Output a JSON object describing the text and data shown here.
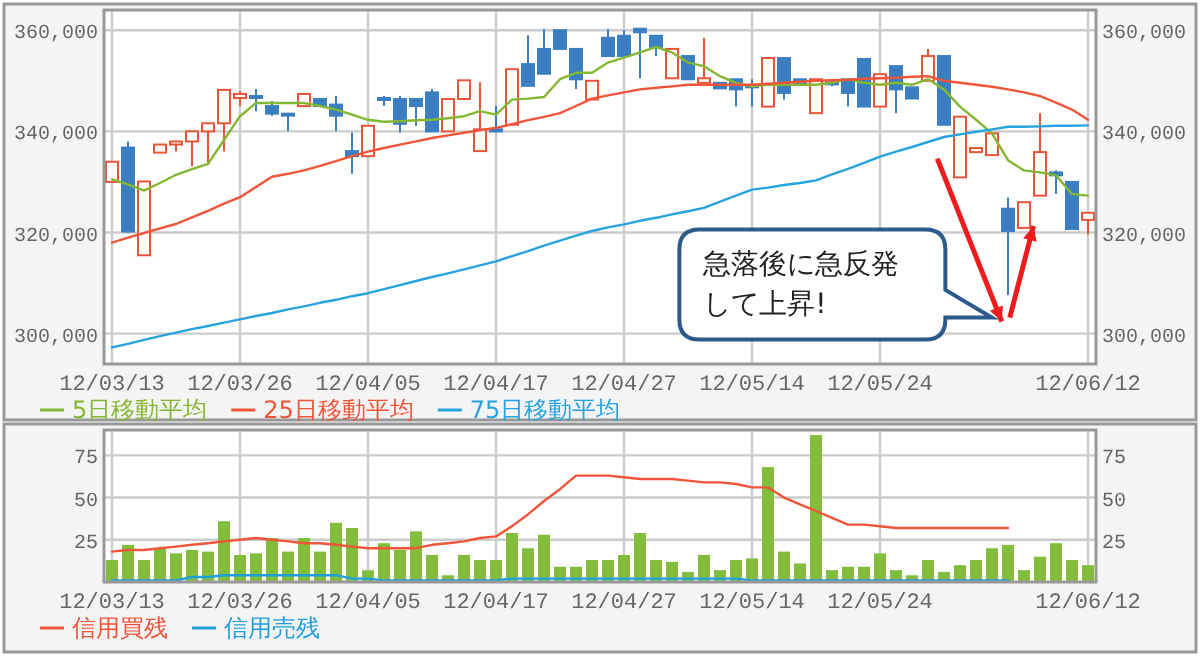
{
  "chart_data": [
    {
      "type": "candlestick",
      "categories": [
        "12/03/13",
        null,
        null,
        null,
        null,
        null,
        null,
        null,
        "12/03/26",
        null,
        null,
        null,
        null,
        null,
        null,
        null,
        "12/04/05",
        null,
        null,
        null,
        null,
        null,
        null,
        null,
        "12/04/17",
        null,
        null,
        null,
        null,
        null,
        null,
        null,
        "12/04/27",
        null,
        null,
        null,
        null,
        null,
        null,
        null,
        "12/05/14",
        null,
        null,
        null,
        null,
        null,
        null,
        null,
        "12/05/24",
        null,
        null,
        null,
        null,
        null,
        null,
        null,
        null,
        null,
        null,
        null,
        null,
        "12/06/12"
      ],
      "ohlc": [
        [
          330000,
          334000,
          330000,
          334000
        ],
        [
          336800,
          338000,
          320000,
          320200
        ],
        [
          315500,
          330100,
          315500,
          330100
        ],
        [
          335800,
          337400,
          335800,
          337400
        ],
        [
          337400,
          338000,
          336000,
          338000
        ],
        [
          338000,
          340000,
          333100,
          340000
        ],
        [
          340000,
          341600,
          333400,
          341600
        ],
        [
          341600,
          348200,
          336000,
          348200
        ],
        [
          346600,
          348000,
          345000,
          347400
        ],
        [
          347000,
          348400,
          344000,
          346600
        ],
        [
          345000,
          346000,
          343100,
          343500
        ],
        [
          343500,
          343500,
          340000,
          343100
        ],
        [
          345000,
          347400,
          345000,
          347400
        ],
        [
          346400,
          346400,
          345000,
          345000
        ],
        [
          345300,
          347000,
          340000,
          343100
        ],
        [
          336100,
          339800,
          331600,
          335100
        ],
        [
          335100,
          341100,
          335100,
          341100
        ],
        [
          346600,
          347000,
          345000,
          346400
        ],
        [
          346400,
          347000,
          339800,
          341500
        ],
        [
          346400,
          346400,
          341100,
          345000
        ],
        [
          347700,
          348400,
          340000,
          340000
        ],
        [
          340000,
          346400,
          340000,
          346400
        ],
        [
          346400,
          350100,
          346400,
          350100
        ],
        [
          336100,
          349700,
          336100,
          340400
        ],
        [
          340400,
          345000,
          339800,
          340000
        ],
        [
          341300,
          352300,
          341300,
          352300
        ],
        [
          353300,
          359000,
          349000,
          349000
        ],
        [
          356300,
          360300,
          351400,
          351400
        ],
        [
          360000,
          360000,
          356300,
          356300
        ],
        [
          356300,
          356300,
          348400,
          350300
        ],
        [
          346300,
          350000,
          346300,
          350000
        ],
        [
          358500,
          360300,
          354900,
          354900
        ],
        [
          358900,
          360000,
          354900,
          354900
        ],
        [
          360300,
          360300,
          350500,
          359600
        ],
        [
          358900,
          358900,
          354900,
          356700
        ],
        [
          350500,
          356300,
          350500,
          356300
        ],
        [
          354900,
          354900,
          350300,
          350300
        ],
        [
          349600,
          358500,
          349600,
          350500
        ],
        [
          349600,
          349600,
          348500,
          348500
        ],
        [
          350300,
          350300,
          344900,
          348300
        ],
        [
          349100,
          350300,
          344900,
          348900
        ],
        [
          344900,
          354500,
          344900,
          354500
        ],
        [
          354500,
          354500,
          346300,
          347600
        ],
        [
          350300,
          350300,
          349200,
          349200
        ],
        [
          343600,
          350300,
          343600,
          350300
        ],
        [
          349700,
          350300,
          348900,
          349300
        ],
        [
          350300,
          350300,
          344900,
          347600
        ],
        [
          354300,
          354300,
          344900,
          344900
        ],
        [
          344900,
          351300,
          344900,
          351300
        ],
        [
          352900,
          352900,
          343600,
          348300
        ],
        [
          348700,
          348700,
          346500,
          346500
        ],
        [
          350000,
          356300,
          350000,
          354900
        ],
        [
          354900,
          354900,
          341300,
          341300
        ],
        [
          330900,
          342900,
          330900,
          342900
        ],
        [
          335900,
          336700,
          335900,
          336700
        ],
        [
          335300,
          339600,
          335300,
          339600
        ],
        [
          324700,
          326900,
          307600,
          320300
        ],
        [
          320900,
          326000,
          320900,
          326000
        ],
        [
          327300,
          343600,
          327300,
          335900
        ],
        [
          331900,
          332300,
          327600,
          331300
        ],
        [
          330000,
          330000,
          320700,
          320700
        ],
        [
          322500,
          323900,
          319600,
          323900
        ]
      ],
      "colors": [
        "#e8563a",
        "#3b7fc1",
        "#e8563a",
        "#e8563a",
        "#e8563a",
        "#e8563a",
        "#e8563a",
        "#e8563a",
        "#e8563a",
        "#3b7fc1",
        "#3b7fc1",
        "#3b7fc1",
        "#e8563a",
        "#3b7fc1",
        "#3b7fc1",
        "#3b7fc1",
        "#e8563a",
        "#3b7fc1",
        "#3b7fc1",
        "#3b7fc1",
        "#3b7fc1",
        "#e8563a",
        "#e8563a",
        "#e8563a",
        "#3b7fc1",
        "#e8563a",
        "#3b7fc1",
        "#3b7fc1",
        "#3b7fc1",
        "#3b7fc1",
        "#e8563a",
        "#3b7fc1",
        "#3b7fc1",
        "#3b7fc1",
        "#3b7fc1",
        "#e8563a",
        "#3b7fc1",
        "#e8563a",
        "#3b7fc1",
        "#3b7fc1",
        "#3b7fc1",
        "#e8563a",
        "#3b7fc1",
        "#3b7fc1",
        "#e8563a",
        "#3b7fc1",
        "#3b7fc1",
        "#3b7fc1",
        "#e8563a",
        "#3b7fc1",
        "#3b7fc1",
        "#e8563a",
        "#3b7fc1",
        "#e8563a",
        "#e8563a",
        "#e8563a",
        "#3b7fc1",
        "#e8563a",
        "#e8563a",
        "#3b7fc1",
        "#3b7fc1",
        "#e8563a"
      ],
      "series": [
        {
          "type": "line",
          "name": "5日移動平均",
          "color": "#84b832",
          "values": [
            330500,
            329500,
            328300,
            329800,
            331400,
            332500,
            333600,
            338300,
            343000,
            345600,
            345600,
            345600,
            345600,
            345000,
            344300,
            343300,
            342300,
            341900,
            342000,
            342200,
            342300,
            342600,
            343000,
            344000,
            343300,
            346300,
            346500,
            346800,
            350300,
            351600,
            351600,
            353600,
            354600,
            355600,
            356700,
            355600,
            353600,
            352900,
            350900,
            349600,
            348900,
            349200,
            349200,
            349200,
            349200,
            349600,
            350300,
            349600,
            349200,
            349600,
            349200,
            350300,
            348300,
            344900,
            342300,
            339600,
            334300,
            332300,
            331900,
            331300,
            327600,
            327300
          ]
        },
        {
          "type": "line",
          "name": "25日移動平均",
          "color": "#f0553a",
          "values": [
            318000,
            319000,
            319900,
            320800,
            321700,
            323000,
            324300,
            325700,
            327000,
            329000,
            331000,
            331600,
            332300,
            333200,
            334100,
            335100,
            336000,
            336700,
            337400,
            338000,
            338700,
            339200,
            339700,
            340200,
            340700,
            341400,
            342200,
            342900,
            343600,
            345000,
            346500,
            347100,
            347700,
            348300,
            348600,
            348900,
            349200,
            349200,
            349200,
            349200,
            349200,
            349400,
            349600,
            349800,
            350000,
            350100,
            350200,
            350400,
            350500,
            350600,
            350800,
            350900,
            350000,
            349600,
            349200,
            348800,
            348300,
            347700,
            347000,
            345700,
            344300,
            342300
          ]
        },
        {
          "type": "line",
          "name": "75日移動平均",
          "color": "#27a3df",
          "values": [
            297300,
            298000,
            298800,
            299500,
            300200,
            300900,
            301500,
            302200,
            302800,
            303500,
            304100,
            304800,
            305400,
            306100,
            306700,
            307400,
            308000,
            308800,
            309600,
            310400,
            311200,
            311900,
            312700,
            313500,
            314300,
            315300,
            316300,
            317400,
            318400,
            319400,
            320300,
            321000,
            321600,
            322300,
            322900,
            323600,
            324200,
            324900,
            326100,
            327300,
            328500,
            328900,
            329400,
            329800,
            330300,
            331500,
            332600,
            333800,
            335000,
            336000,
            336900,
            337900,
            338900,
            339400,
            339900,
            340400,
            340900,
            340900,
            341000,
            341100,
            341100,
            341200
          ]
        }
      ],
      "ylim": [
        294000,
        364000
      ],
      "yticks": [
        {
          "value": 300000,
          "label": "300,000"
        },
        {
          "value": 320000,
          "label": "320,000"
        },
        {
          "value": 340000,
          "label": "340,000"
        },
        {
          "value": 360000,
          "label": "360,000"
        }
      ],
      "y2lim": [
        294000,
        364000
      ],
      "y2ticks": [
        {
          "value": 300000,
          "label": "300,000"
        },
        {
          "value": 320000,
          "label": "320,000"
        },
        {
          "value": 340000,
          "label": "340,000"
        },
        {
          "value": 360000,
          "label": "360,000"
        }
      ],
      "annotations": [
        "急落後に急反発して上昇!"
      ],
      "grid": true,
      "legend": "bottom"
    },
    {
      "type": "bar",
      "categories": [
        "12/03/13",
        null,
        null,
        null,
        null,
        null,
        null,
        null,
        "12/03/26",
        null,
        null,
        null,
        null,
        null,
        null,
        null,
        "12/04/05",
        null,
        null,
        null,
        null,
        null,
        null,
        null,
        "12/04/17",
        null,
        null,
        null,
        null,
        null,
        null,
        null,
        "12/04/27",
        null,
        null,
        null,
        null,
        null,
        null,
        null,
        "12/05/14",
        null,
        null,
        null,
        null,
        null,
        null,
        null,
        "12/05/24",
        null,
        null,
        null,
        null,
        null,
        null,
        null,
        null,
        null,
        null,
        null,
        null,
        "12/06/12"
      ],
      "series": [
        {
          "type": "bar",
          "color": "#82bd3c",
          "values": [
            13,
            22,
            13,
            20,
            17,
            19,
            18,
            36,
            16,
            17,
            26,
            18,
            26,
            18,
            35,
            32,
            7,
            23,
            19,
            30,
            16,
            4,
            16,
            13,
            13,
            29,
            20,
            28,
            9,
            9,
            13,
            13,
            16,
            29,
            13,
            12,
            6,
            16,
            7,
            13,
            14,
            68,
            18,
            11,
            87,
            7,
            9,
            9,
            17,
            7,
            4,
            13,
            6,
            10,
            13,
            20,
            22,
            7,
            15,
            23,
            13,
            10
          ]
        },
        {
          "type": "line",
          "name": "信用買残",
          "color": "#f0553a",
          "values": [
            18,
            19,
            19,
            20,
            21,
            22,
            23,
            24,
            25,
            26,
            25,
            24,
            23,
            23,
            22,
            21,
            20,
            20,
            20,
            20,
            22,
            23,
            24,
            26,
            27,
            33,
            40,
            48,
            55,
            63,
            63,
            63,
            62,
            61,
            61,
            61,
            60,
            59,
            59,
            58,
            56,
            56,
            50,
            46,
            42,
            38,
            34,
            34,
            33,
            32,
            32,
            32,
            32,
            32,
            32,
            32,
            32,
            null,
            null,
            null,
            null,
            null
          ]
        },
        {
          "type": "line",
          "name": "信用売残",
          "color": "#1f9fdc",
          "values": [
            1,
            1,
            1,
            1,
            1,
            3,
            3,
            4,
            4,
            4,
            4,
            4,
            4,
            4,
            4,
            2,
            2,
            1,
            1,
            1,
            1,
            1,
            1,
            1,
            1,
            2,
            2,
            2,
            2,
            2,
            2,
            2,
            2,
            2,
            2,
            2,
            2,
            2,
            2,
            2,
            1,
            1,
            1,
            1,
            1,
            1,
            1,
            1,
            1,
            1,
            1,
            1,
            1,
            1,
            1,
            1,
            1,
            null,
            null,
            null,
            null,
            null
          ]
        }
      ],
      "ylim": [
        0,
        90
      ],
      "yticks": [
        25,
        50,
        75
      ],
      "y2lim": [
        0,
        90
      ],
      "y2ticks": [
        25,
        50,
        75
      ],
      "grid": true,
      "legend": "bottom"
    }
  ]
}
